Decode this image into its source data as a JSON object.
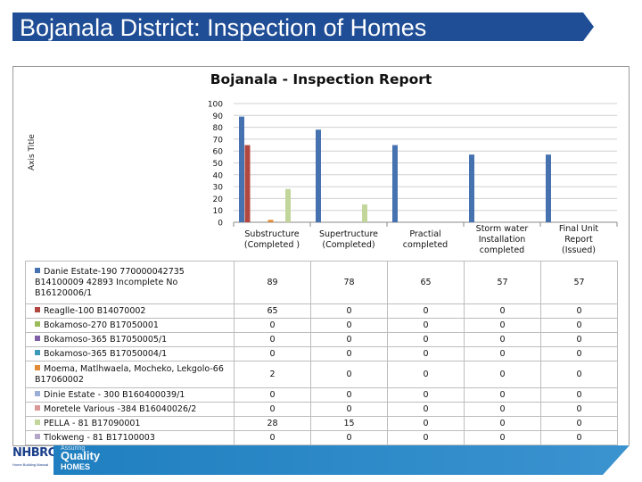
{
  "slide": {
    "title": "Bojanala District:  Inspection of Homes",
    "banner_color": "#1f4e96"
  },
  "footer": {
    "logo_text": "NHBRC",
    "logo_subtext": "Home Building Manual",
    "tagline_small": "Assuring",
    "tagline_big": "Quality",
    "tagline_homes": "HOMES"
  },
  "chart_data": {
    "type": "bar",
    "title": "Bojanala - Inspection Report",
    "ylabel": "Axis Title",
    "ylim": [
      0,
      100
    ],
    "yticks": [
      0,
      10,
      20,
      30,
      40,
      50,
      60,
      70,
      80,
      90,
      100
    ],
    "grid": true,
    "categories": [
      [
        "Substructure",
        "(Completed )"
      ],
      [
        "Supertructure",
        "(Completed)"
      ],
      [
        "Practial",
        "completed"
      ],
      [
        "Storm water",
        "Installation",
        "completed"
      ],
      [
        "Final Unit",
        "Report",
        "(Issued)"
      ]
    ],
    "series": [
      {
        "name": "Danie Estate-190 770000042735 B14100009 42893 Incomplete No B16120006/1",
        "color": "#4672b0",
        "values": [
          89,
          78,
          65,
          57,
          57
        ]
      },
      {
        "name": "Reaglle-100 B14070002",
        "color": "#b2473f",
        "values": [
          65,
          0,
          0,
          0,
          0
        ]
      },
      {
        "name": "Bokamoso-270 B17050001",
        "color": "#9bbb59",
        "values": [
          0,
          0,
          0,
          0,
          0
        ]
      },
      {
        "name": "Bokamoso-365 B17050005/1",
        "color": "#7f5fa7",
        "values": [
          0,
          0,
          0,
          0,
          0
        ]
      },
      {
        "name": "Bokamoso-365 B17050004/1",
        "color": "#3a9ab8",
        "values": [
          0,
          0,
          0,
          0,
          0
        ]
      },
      {
        "name": "Moema, Matlhwaela, Mocheko, Lekgolo-66 B17060002",
        "color": "#e28a35",
        "values": [
          2,
          0,
          0,
          0,
          0
        ]
      },
      {
        "name": "Dinie Estate - 300 B160400039/1",
        "color": "#9aaed6",
        "values": [
          0,
          0,
          0,
          0,
          0
        ]
      },
      {
        "name": "Moretele Various -384 B16040026/2",
        "color": "#d99896",
        "values": [
          0,
          0,
          0,
          0,
          0
        ]
      },
      {
        "name": "PELLA - 81 B17090001",
        "color": "#c2d69b",
        "values": [
          28,
          15,
          0,
          0,
          0
        ]
      },
      {
        "name": "Tlokweng - 81 B17100003",
        "color": "#b3a6c8",
        "values": [
          0,
          0,
          0,
          0,
          0
        ]
      }
    ]
  }
}
